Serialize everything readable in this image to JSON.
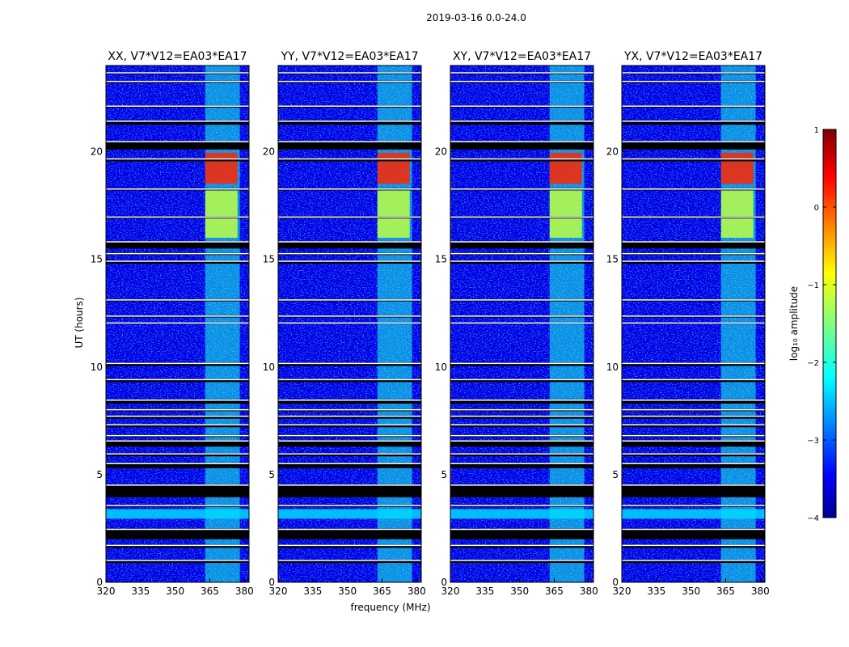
{
  "chart_data": {
    "type": "heatmap",
    "suptitle": "2019-03-16 0.0-24.0",
    "xlabel": "frequency (MHz)",
    "ylabel": "UT (hours)",
    "xlim": [
      320,
      382
    ],
    "ylim": [
      0,
      24
    ],
    "x_ticks": [
      320,
      335,
      350,
      365,
      380
    ],
    "y_ticks": [
      0,
      5,
      10,
      15,
      20
    ],
    "panels": [
      {
        "title": "XX, V7*V12=EA03*EA17",
        "polarization": "XX"
      },
      {
        "title": "YY, V7*V12=EA03*EA17",
        "polarization": "YY"
      },
      {
        "title": "XY, V7*V12=EA03*EA17",
        "polarization": "XY"
      },
      {
        "title": "YX, V7*V12=EA03*EA17",
        "polarization": "YX"
      }
    ],
    "colorbar": {
      "label": "log₁₀ amplitude",
      "range": [
        -4,
        1
      ],
      "ticks": [
        -4,
        -3,
        -2,
        -1,
        0,
        1
      ],
      "tick_labels": [
        "−4",
        "−3",
        "−2",
        "−1",
        "0",
        "1"
      ],
      "colormap": "jet"
    },
    "flagged_hours": [
      [
        0.9,
        1.05
      ],
      [
        1.6,
        1.75
      ],
      [
        2.0,
        2.5
      ],
      [
        3.5,
        3.6
      ],
      [
        3.95,
        4.55
      ],
      [
        5.3,
        5.55
      ],
      [
        5.85,
        6.0
      ],
      [
        6.3,
        6.6
      ],
      [
        6.75,
        6.85
      ],
      [
        7.2,
        7.35
      ],
      [
        7.6,
        7.75
      ],
      [
        7.95,
        8.05
      ],
      [
        8.3,
        8.5
      ],
      [
        9.3,
        9.45
      ],
      [
        10.05,
        10.2
      ],
      [
        12.0,
        12.08
      ],
      [
        12.3,
        12.4
      ],
      [
        13.05,
        13.15
      ],
      [
        14.8,
        14.95
      ],
      [
        15.2,
        15.3
      ],
      [
        15.5,
        15.85
      ],
      [
        16.9,
        17.0
      ],
      [
        18.2,
        18.3
      ],
      [
        19.55,
        19.7
      ],
      [
        20.1,
        20.5
      ],
      [
        21.25,
        21.45
      ],
      [
        22.05,
        22.15
      ],
      [
        23.2,
        23.3
      ],
      [
        23.6,
        23.7
      ]
    ],
    "rfi_features": [
      {
        "description": "broadband RFI",
        "freq_range": [
          363,
          378
        ],
        "hours": [
          0,
          24
        ],
        "log_amplitude": -2.0
      },
      {
        "description": "strong RFI",
        "freq_range": [
          363,
          377
        ],
        "hours": [
          18.5,
          19.95
        ],
        "log_amplitude": 0.2
      },
      {
        "description": "RFI",
        "freq_range": [
          363,
          377
        ],
        "hours": [
          16.0,
          18.2
        ],
        "log_amplitude": -1.2
      },
      {
        "description": "broadband burst",
        "freq_range": [
          320,
          382
        ],
        "hours": [
          2.95,
          3.4
        ],
        "log_amplitude": -2.3
      }
    ],
    "background_log_amplitude": -3.5
  }
}
